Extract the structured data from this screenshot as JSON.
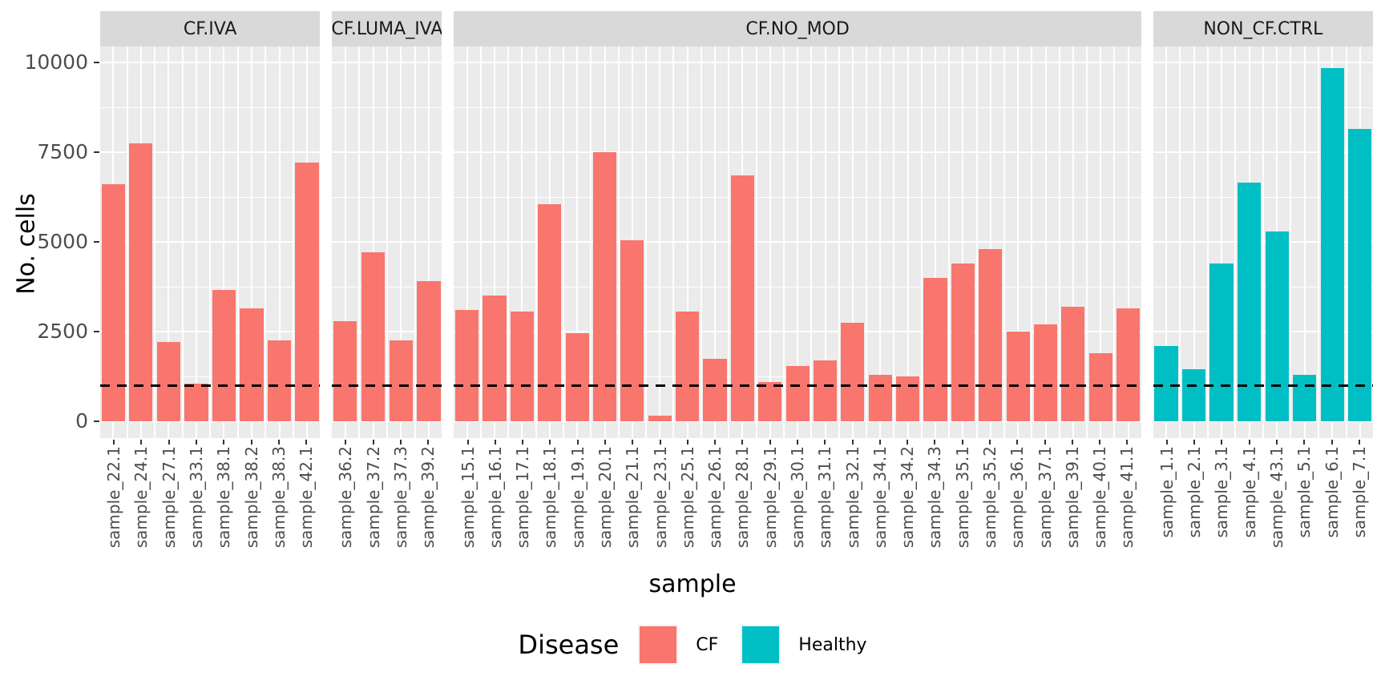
{
  "chart_data": {
    "type": "bar",
    "title": "",
    "xlabel": "sample",
    "ylabel": "No. cells",
    "ylim": [
      0,
      10000
    ],
    "y_ticks": [
      0,
      2500,
      5000,
      7500,
      10000
    ],
    "y_minor_ticks": [
      1250,
      3750,
      6250,
      8750
    ],
    "grid": true,
    "hline": {
      "value": 1000,
      "style": "dashed",
      "color": "#000000"
    },
    "panel_background": "#EBEBEB",
    "strip_background": "#D9D9D9",
    "legend": {
      "title": "Disease",
      "position": "bottom",
      "entries": [
        {
          "label": "CF",
          "color": "#F8766D"
        },
        {
          "label": "Healthy",
          "color": "#00BFC4"
        }
      ]
    },
    "facets": [
      {
        "label": "CF.IVA",
        "disease": "CF",
        "samples": [
          "sample_22.1",
          "sample_24.1",
          "sample_27.1",
          "sample_33.1",
          "sample_38.1",
          "sample_38.2",
          "sample_38.3",
          "sample_42.1"
        ],
        "values": [
          6600,
          7750,
          2200,
          1050,
          3650,
          3150,
          2250,
          7200
        ]
      },
      {
        "label": "CF.LUMA_IVA",
        "disease": "CF",
        "samples": [
          "sample_36.2",
          "sample_37.2",
          "sample_37.3",
          "sample_39.2"
        ],
        "values": [
          2800,
          4700,
          2250,
          3900
        ]
      },
      {
        "label": "CF.NO_MOD",
        "disease": "CF",
        "samples": [
          "sample_15.1",
          "sample_16.1",
          "sample_17.1",
          "sample_18.1",
          "sample_19.1",
          "sample_20.1",
          "sample_21.1",
          "sample_23.1",
          "sample_25.1",
          "sample_26.1",
          "sample_28.1",
          "sample_29.1",
          "sample_30.1",
          "sample_31.1",
          "sample_32.1",
          "sample_34.1",
          "sample_34.2",
          "sample_34.3",
          "sample_35.1",
          "sample_35.2",
          "sample_36.1",
          "sample_37.1",
          "sample_39.1",
          "sample_40.1",
          "sample_41.1"
        ],
        "values": [
          3100,
          3500,
          3050,
          6050,
          2450,
          7500,
          5050,
          150,
          3050,
          1750,
          6850,
          1100,
          1550,
          1700,
          2750,
          1300,
          1250,
          4000,
          4400,
          4800,
          2500,
          2700,
          3200,
          1900,
          3150
        ]
      },
      {
        "label": "NON_CF.CTRL",
        "disease": "Healthy",
        "samples": [
          "sample_1.1",
          "sample_2.1",
          "sample_3.1",
          "sample_4.1",
          "sample_43.1",
          "sample_5.1",
          "sample_6.1",
          "sample_7.1"
        ],
        "values": [
          2100,
          1450,
          4400,
          6650,
          5300,
          1300,
          9850,
          8150
        ]
      }
    ]
  }
}
